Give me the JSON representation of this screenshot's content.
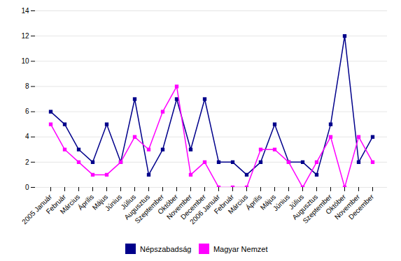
{
  "chart_data": {
    "type": "line",
    "categories": [
      "2005 Január",
      "Február",
      "Március",
      "Április",
      "Május",
      "Június",
      "Július",
      "Augusztus",
      "Szeptember",
      "Október",
      "November",
      "December",
      "2006 Január",
      "Február",
      "Március",
      "Április",
      "Május",
      "Június",
      "Július",
      "Augusztus",
      "Szeptember",
      "Október",
      "November",
      "December"
    ],
    "series": [
      {
        "name": "Népszabadság",
        "color": "#00008B",
        "marker": "square",
        "values": [
          6,
          5,
          3,
          2,
          5,
          2,
          7,
          1,
          3,
          7,
          3,
          7,
          2,
          2,
          1,
          2,
          5,
          2,
          2,
          1,
          5,
          12,
          2,
          4
        ]
      },
      {
        "name": "Magyar Nemzet",
        "color": "#FF00FF",
        "marker": "square",
        "values": [
          5,
          3,
          2,
          1,
          1,
          2,
          4,
          3,
          6,
          8,
          1,
          2,
          0,
          0,
          0,
          3,
          3,
          2,
          0,
          2,
          4,
          0,
          4,
          2
        ]
      }
    ],
    "ylim": [
      0,
      14
    ],
    "yticks": [
      0,
      2,
      4,
      6,
      8,
      10,
      12,
      14
    ],
    "grid": true,
    "legend": "bottom"
  }
}
